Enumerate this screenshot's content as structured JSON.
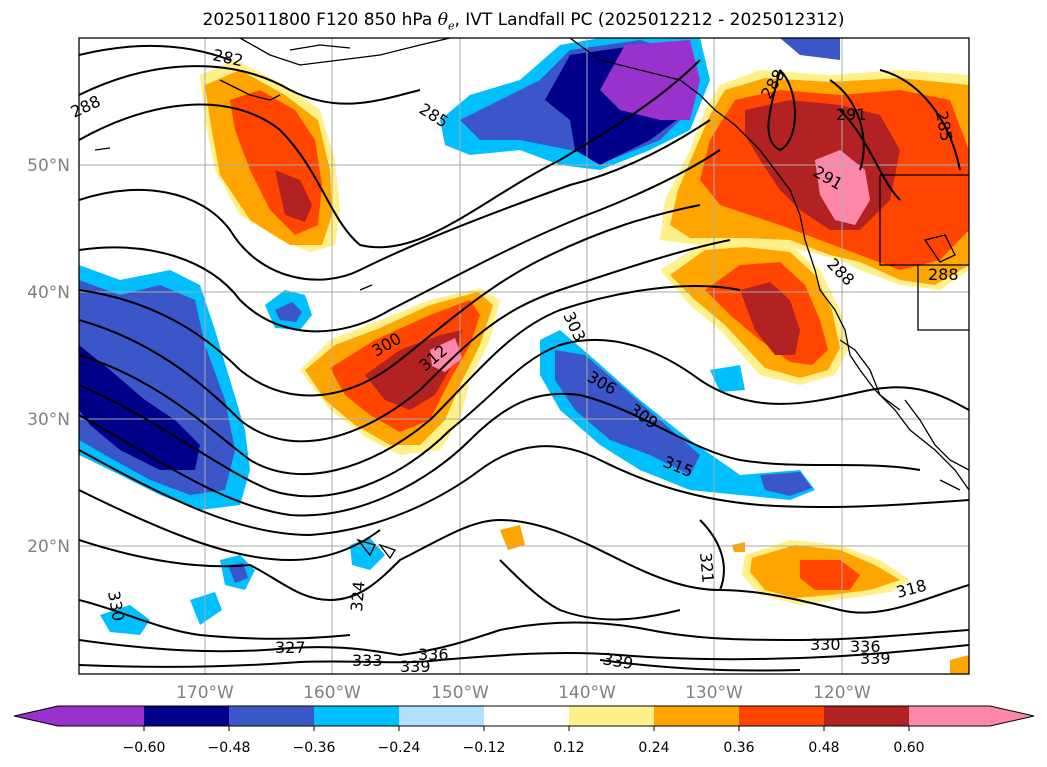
{
  "title": {
    "prefix": "2025011800 F120 850 hPa ",
    "theta": "θ",
    "theta_sub": "e",
    "suffix": ", IVT Landfall PC (2025012212 - 2025012312)"
  },
  "map": {
    "lat_labels": [
      "50°N",
      "40°N",
      "30°N",
      "20°N"
    ],
    "lon_labels": [
      "170°W",
      "160°W",
      "150°W",
      "140°W",
      "130°W",
      "120°W"
    ],
    "contour_labels": [
      "282",
      "288",
      "285",
      "291",
      "285",
      "291",
      "288",
      "288",
      "288",
      "300",
      "312",
      "303",
      "306",
      "309",
      "315",
      "321",
      "318",
      "324",
      "330",
      "327",
      "333",
      "336",
      "339",
      "339",
      "330",
      "336",
      "339"
    ]
  },
  "colorbar": {
    "ticks": [
      "−0.60",
      "−0.48",
      "−0.36",
      "−0.24",
      "−0.12",
      "0.12",
      "0.24",
      "0.36",
      "0.48",
      "0.60"
    ],
    "colors": [
      "#9932cc",
      "#00008b",
      "#3a56c8",
      "#00bfff",
      "#b0e0ff",
      "#ffffff",
      "#fff08a",
      "#ffa500",
      "#ff4500",
      "#b22222",
      "#ff88aa"
    ]
  }
}
